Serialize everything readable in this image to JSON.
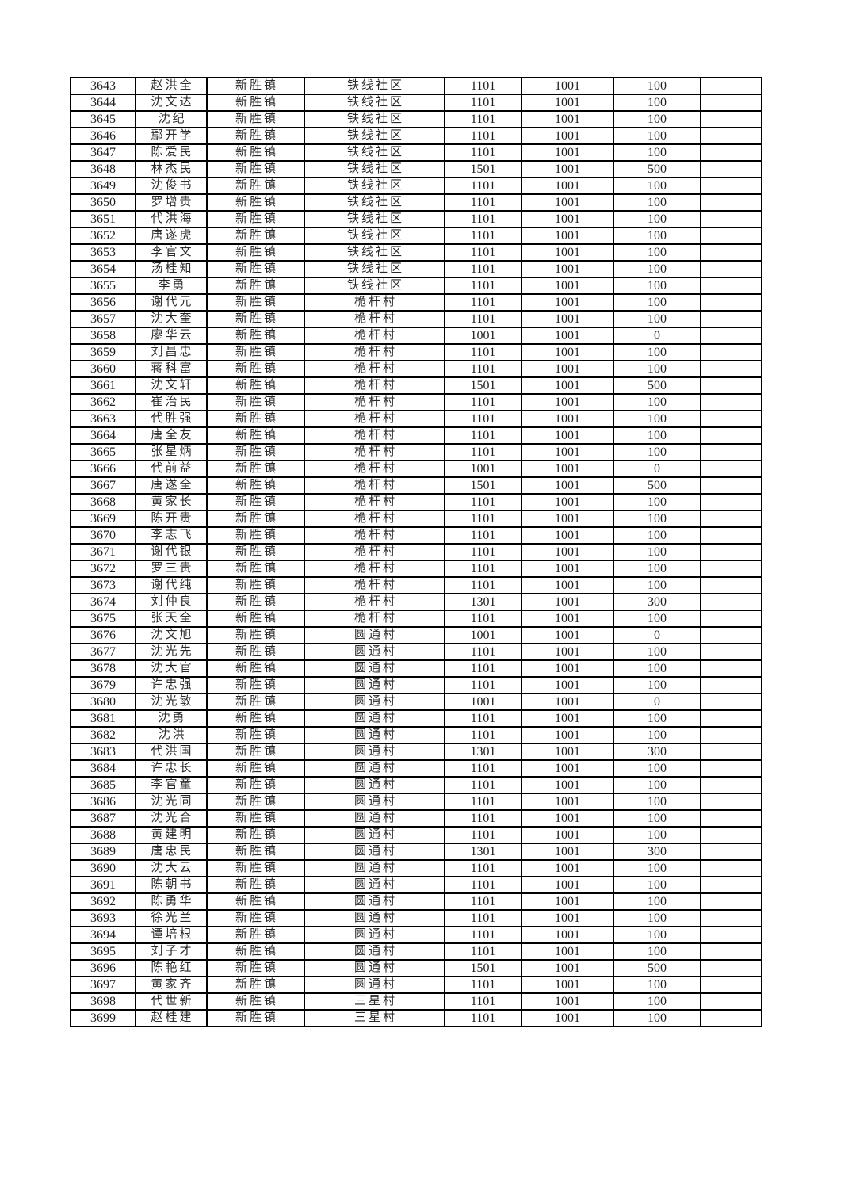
{
  "page": {
    "background_color": "#ffffff",
    "text_color": "#1f1f1f",
    "border_color": "#000000"
  },
  "table": {
    "column_semantic_names": [
      "serial-number-cell",
      "person-name-cell",
      "town-cell",
      "village-cell",
      "amount-total-cell",
      "amount-base-cell",
      "amount-extra-cell",
      "empty-cell"
    ],
    "rows": [
      [
        "3643",
        "赵洪全",
        "新胜镇",
        "铁线社区",
        "1101",
        "1001",
        "100",
        ""
      ],
      [
        "3644",
        "沈文达",
        "新胜镇",
        "铁线社区",
        "1101",
        "1001",
        "100",
        ""
      ],
      [
        "3645",
        "沈纪",
        "新胜镇",
        "铁线社区",
        "1101",
        "1001",
        "100",
        ""
      ],
      [
        "3646",
        "鄢开学",
        "新胜镇",
        "铁线社区",
        "1101",
        "1001",
        "100",
        ""
      ],
      [
        "3647",
        "陈爱民",
        "新胜镇",
        "铁线社区",
        "1101",
        "1001",
        "100",
        ""
      ],
      [
        "3648",
        "林杰民",
        "新胜镇",
        "铁线社区",
        "1501",
        "1001",
        "500",
        ""
      ],
      [
        "3649",
        "沈俊书",
        "新胜镇",
        "铁线社区",
        "1101",
        "1001",
        "100",
        ""
      ],
      [
        "3650",
        "罗增贵",
        "新胜镇",
        "铁线社区",
        "1101",
        "1001",
        "100",
        ""
      ],
      [
        "3651",
        "代洪海",
        "新胜镇",
        "铁线社区",
        "1101",
        "1001",
        "100",
        ""
      ],
      [
        "3652",
        "唐遂虎",
        "新胜镇",
        "铁线社区",
        "1101",
        "1001",
        "100",
        ""
      ],
      [
        "3653",
        "李官文",
        "新胜镇",
        "铁线社区",
        "1101",
        "1001",
        "100",
        ""
      ],
      [
        "3654",
        "汤桂知",
        "新胜镇",
        "铁线社区",
        "1101",
        "1001",
        "100",
        ""
      ],
      [
        "3655",
        "李勇",
        "新胜镇",
        "铁线社区",
        "1101",
        "1001",
        "100",
        ""
      ],
      [
        "3656",
        "谢代元",
        "新胜镇",
        "桅杆村",
        "1101",
        "1001",
        "100",
        ""
      ],
      [
        "3657",
        "沈大奎",
        "新胜镇",
        "桅杆村",
        "1101",
        "1001",
        "100",
        ""
      ],
      [
        "3658",
        "廖华云",
        "新胜镇",
        "桅杆村",
        "1001",
        "1001",
        "0",
        ""
      ],
      [
        "3659",
        "刘昌忠",
        "新胜镇",
        "桅杆村",
        "1101",
        "1001",
        "100",
        ""
      ],
      [
        "3660",
        "蒋科富",
        "新胜镇",
        "桅杆村",
        "1101",
        "1001",
        "100",
        ""
      ],
      [
        "3661",
        "沈文轩",
        "新胜镇",
        "桅杆村",
        "1501",
        "1001",
        "500",
        ""
      ],
      [
        "3662",
        "崔治民",
        "新胜镇",
        "桅杆村",
        "1101",
        "1001",
        "100",
        ""
      ],
      [
        "3663",
        "代胜强",
        "新胜镇",
        "桅杆村",
        "1101",
        "1001",
        "100",
        ""
      ],
      [
        "3664",
        "唐全友",
        "新胜镇",
        "桅杆村",
        "1101",
        "1001",
        "100",
        ""
      ],
      [
        "3665",
        "张星炳",
        "新胜镇",
        "桅杆村",
        "1101",
        "1001",
        "100",
        ""
      ],
      [
        "3666",
        "代前益",
        "新胜镇",
        "桅杆村",
        "1001",
        "1001",
        "0",
        ""
      ],
      [
        "3667",
        "唐遂全",
        "新胜镇",
        "桅杆村",
        "1501",
        "1001",
        "500",
        ""
      ],
      [
        "3668",
        "黄家长",
        "新胜镇",
        "桅杆村",
        "1101",
        "1001",
        "100",
        ""
      ],
      [
        "3669",
        "陈开贵",
        "新胜镇",
        "桅杆村",
        "1101",
        "1001",
        "100",
        ""
      ],
      [
        "3670",
        "李志飞",
        "新胜镇",
        "桅杆村",
        "1101",
        "1001",
        "100",
        ""
      ],
      [
        "3671",
        "谢代银",
        "新胜镇",
        "桅杆村",
        "1101",
        "1001",
        "100",
        ""
      ],
      [
        "3672",
        "罗三贵",
        "新胜镇",
        "桅杆村",
        "1101",
        "1001",
        "100",
        ""
      ],
      [
        "3673",
        "谢代纯",
        "新胜镇",
        "桅杆村",
        "1101",
        "1001",
        "100",
        ""
      ],
      [
        "3674",
        "刘仲良",
        "新胜镇",
        "桅杆村",
        "1301",
        "1001",
        "300",
        ""
      ],
      [
        "3675",
        "张天全",
        "新胜镇",
        "桅杆村",
        "1101",
        "1001",
        "100",
        ""
      ],
      [
        "3676",
        "沈文旭",
        "新胜镇",
        "圆通村",
        "1001",
        "1001",
        "0",
        ""
      ],
      [
        "3677",
        "沈光先",
        "新胜镇",
        "圆通村",
        "1101",
        "1001",
        "100",
        ""
      ],
      [
        "3678",
        "沈大官",
        "新胜镇",
        "圆通村",
        "1101",
        "1001",
        "100",
        ""
      ],
      [
        "3679",
        "许忠强",
        "新胜镇",
        "圆通村",
        "1101",
        "1001",
        "100",
        ""
      ],
      [
        "3680",
        "沈光敏",
        "新胜镇",
        "圆通村",
        "1001",
        "1001",
        "0",
        ""
      ],
      [
        "3681",
        "沈勇",
        "新胜镇",
        "圆通村",
        "1101",
        "1001",
        "100",
        ""
      ],
      [
        "3682",
        "沈洪",
        "新胜镇",
        "圆通村",
        "1101",
        "1001",
        "100",
        ""
      ],
      [
        "3683",
        "代洪国",
        "新胜镇",
        "圆通村",
        "1301",
        "1001",
        "300",
        ""
      ],
      [
        "3684",
        "许忠长",
        "新胜镇",
        "圆通村",
        "1101",
        "1001",
        "100",
        ""
      ],
      [
        "3685",
        "李官童",
        "新胜镇",
        "圆通村",
        "1101",
        "1001",
        "100",
        ""
      ],
      [
        "3686",
        "沈光同",
        "新胜镇",
        "圆通村",
        "1101",
        "1001",
        "100",
        ""
      ],
      [
        "3687",
        "沈光合",
        "新胜镇",
        "圆通村",
        "1101",
        "1001",
        "100",
        ""
      ],
      [
        "3688",
        "黄建明",
        "新胜镇",
        "圆通村",
        "1101",
        "1001",
        "100",
        ""
      ],
      [
        "3689",
        "唐忠民",
        "新胜镇",
        "圆通村",
        "1301",
        "1001",
        "300",
        ""
      ],
      [
        "3690",
        "沈大云",
        "新胜镇",
        "圆通村",
        "1101",
        "1001",
        "100",
        ""
      ],
      [
        "3691",
        "陈朝书",
        "新胜镇",
        "圆通村",
        "1101",
        "1001",
        "100",
        ""
      ],
      [
        "3692",
        "陈勇华",
        "新胜镇",
        "圆通村",
        "1101",
        "1001",
        "100",
        ""
      ],
      [
        "3693",
        "徐光兰",
        "新胜镇",
        "圆通村",
        "1101",
        "1001",
        "100",
        ""
      ],
      [
        "3694",
        "谭培根",
        "新胜镇",
        "圆通村",
        "1101",
        "1001",
        "100",
        ""
      ],
      [
        "3695",
        "刘子才",
        "新胜镇",
        "圆通村",
        "1101",
        "1001",
        "100",
        ""
      ],
      [
        "3696",
        "陈艳红",
        "新胜镇",
        "圆通村",
        "1501",
        "1001",
        "500",
        ""
      ],
      [
        "3697",
        "黄家齐",
        "新胜镇",
        "圆通村",
        "1101",
        "1001",
        "100",
        ""
      ],
      [
        "3698",
        "代世新",
        "新胜镇",
        "三星村",
        "1101",
        "1001",
        "100",
        ""
      ],
      [
        "3699",
        "赵桂建",
        "新胜镇",
        "三星村",
        "1101",
        "1001",
        "100",
        ""
      ]
    ]
  }
}
